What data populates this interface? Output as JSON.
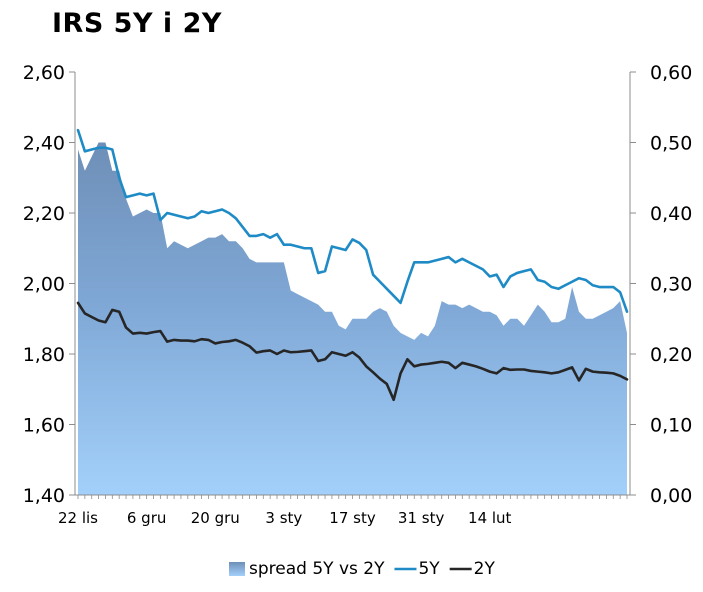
{
  "chart_data": {
    "type": "line",
    "title": "IRS 5Y i 2Y",
    "y_left": {
      "min": 1.4,
      "max": 2.6,
      "ticks": [
        "1,40",
        "1,60",
        "1,80",
        "2,00",
        "2,20",
        "2,40",
        "2,60"
      ]
    },
    "y_right": {
      "min": 0.0,
      "max": 0.6,
      "ticks": [
        "0,00",
        "0,10",
        "0,20",
        "0,30",
        "0,40",
        "0,50",
        "0,60"
      ]
    },
    "x_tick_labels": [
      "22 lis",
      "6 gru",
      "20 gru",
      "3 sty",
      "17 sty",
      "31 sty",
      "14 lut"
    ],
    "grid": false,
    "legend_position": "bottom",
    "series": [
      {
        "name": "spread 5Y vs 2Y",
        "axis": "right",
        "type": "area",
        "color": "#6f95bd",
        "values": [
          0.49,
          0.46,
          0.48,
          0.5,
          0.5,
          0.46,
          0.46,
          0.42,
          0.395,
          0.4,
          0.405,
          0.4,
          0.4,
          0.35,
          0.36,
          0.355,
          0.35,
          0.355,
          0.36,
          0.365,
          0.365,
          0.37,
          0.36,
          0.36,
          0.35,
          0.335,
          0.33,
          0.33,
          0.33,
          0.33,
          0.33,
          0.29,
          0.285,
          0.28,
          0.275,
          0.27,
          0.26,
          0.26,
          0.24,
          0.235,
          0.25,
          0.25,
          0.25,
          0.26,
          0.265,
          0.26,
          0.24,
          0.23,
          0.225,
          0.22,
          0.23,
          0.225,
          0.24,
          0.275,
          0.27,
          0.27,
          0.265,
          0.27,
          0.265,
          0.26,
          0.26,
          0.255,
          0.24,
          0.25,
          0.25,
          0.24,
          0.255,
          0.27,
          0.26,
          0.245,
          0.245,
          0.25,
          0.295,
          0.26,
          0.25,
          0.25,
          0.255,
          0.26,
          0.265,
          0.275,
          0.23
        ]
      },
      {
        "name": "5Y",
        "axis": "left",
        "type": "line",
        "color": "#1f8bc6",
        "values": [
          2.435,
          2.375,
          2.38,
          2.385,
          2.385,
          2.38,
          2.3,
          2.245,
          2.25,
          2.255,
          2.25,
          2.255,
          2.18,
          2.2,
          2.195,
          2.19,
          2.185,
          2.19,
          2.205,
          2.2,
          2.205,
          2.21,
          2.2,
          2.185,
          2.16,
          2.135,
          2.135,
          2.14,
          2.13,
          2.14,
          2.11,
          2.11,
          2.105,
          2.1,
          2.1,
          2.03,
          2.035,
          2.105,
          2.1,
          2.095,
          2.125,
          2.115,
          2.095,
          2.025,
          2.005,
          1.985,
          1.965,
          1.945,
          2.005,
          2.06,
          2.06,
          2.06,
          2.065,
          2.07,
          2.075,
          2.06,
          2.07,
          2.06,
          2.05,
          2.04,
          2.02,
          2.025,
          1.99,
          2.02,
          2.03,
          2.035,
          2.04,
          2.01,
          2.005,
          1.99,
          1.985,
          1.995,
          2.005,
          2.015,
          2.01,
          1.995,
          1.99,
          1.99,
          1.99,
          1.975,
          1.92
        ]
      },
      {
        "name": "2Y",
        "axis": "left",
        "type": "line",
        "color": "#262626",
        "values": [
          1.945,
          1.915,
          1.905,
          1.895,
          1.89,
          1.925,
          1.92,
          1.875,
          1.858,
          1.86,
          1.858,
          1.862,
          1.865,
          1.835,
          1.84,
          1.838,
          1.838,
          1.836,
          1.842,
          1.84,
          1.83,
          1.834,
          1.836,
          1.84,
          1.832,
          1.822,
          1.804,
          1.808,
          1.81,
          1.8,
          1.81,
          1.805,
          1.806,
          1.808,
          1.81,
          1.78,
          1.785,
          1.805,
          1.8,
          1.795,
          1.805,
          1.79,
          1.765,
          1.748,
          1.73,
          1.715,
          1.67,
          1.745,
          1.785,
          1.765,
          1.77,
          1.772,
          1.775,
          1.778,
          1.775,
          1.76,
          1.775,
          1.77,
          1.765,
          1.758,
          1.75,
          1.745,
          1.76,
          1.755,
          1.756,
          1.756,
          1.752,
          1.75,
          1.748,
          1.745,
          1.748,
          1.755,
          1.762,
          1.725,
          1.758,
          1.75,
          1.748,
          1.747,
          1.745,
          1.738,
          1.728
        ]
      }
    ]
  }
}
